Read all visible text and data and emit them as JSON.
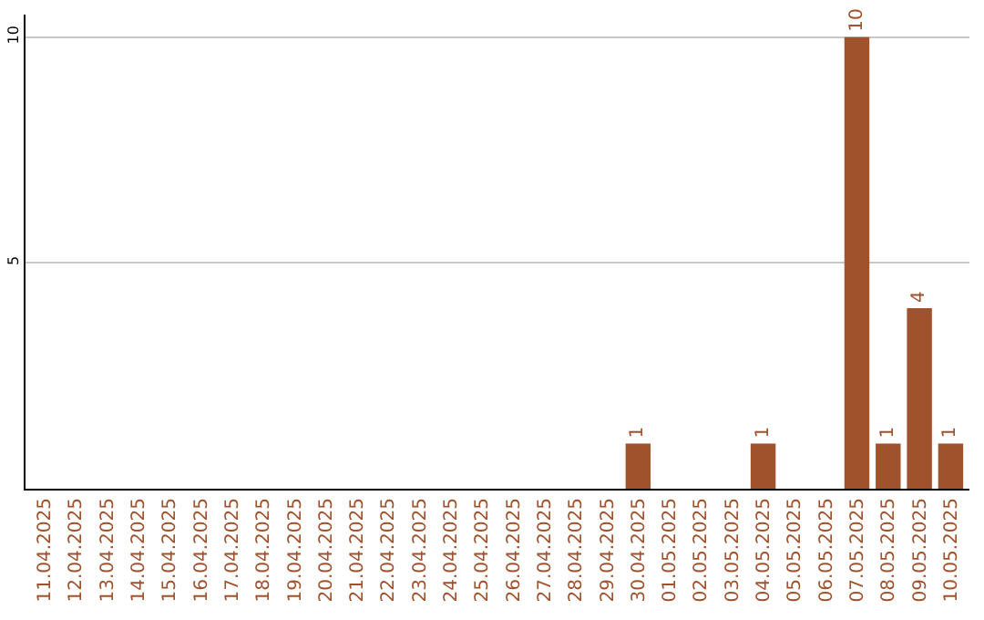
{
  "chart_data": {
    "type": "bar",
    "categories": [
      "11.04.2025",
      "12.04.2025",
      "13.04.2025",
      "14.04.2025",
      "15.04.2025",
      "16.04.2025",
      "17.04.2025",
      "18.04.2025",
      "19.04.2025",
      "20.04.2025",
      "21.04.2025",
      "22.04.2025",
      "23.04.2025",
      "24.04.2025",
      "25.04.2025",
      "26.04.2025",
      "27.04.2025",
      "28.04.2025",
      "29.04.2025",
      "30.04.2025",
      "01.05.2025",
      "02.05.2025",
      "03.05.2025",
      "04.05.2025",
      "05.05.2025",
      "06.05.2025",
      "07.05.2025",
      "08.05.2025",
      "09.05.2025",
      "10.05.2025"
    ],
    "values": [
      0,
      0,
      0,
      0,
      0,
      0,
      0,
      0,
      0,
      0,
      0,
      0,
      0,
      0,
      0,
      0,
      0,
      0,
      0,
      1,
      0,
      0,
      0,
      1,
      0,
      0,
      10,
      1,
      4,
      1
    ],
    "value_labels": [
      null,
      null,
      null,
      null,
      null,
      null,
      null,
      null,
      null,
      null,
      null,
      null,
      null,
      null,
      null,
      null,
      null,
      null,
      null,
      "1",
      null,
      null,
      null,
      "1",
      null,
      null,
      "10",
      "1",
      "4",
      "1"
    ],
    "color": "#a0522d",
    "ylim": [
      0,
      10.5
    ],
    "yticks": [
      5,
      10
    ],
    "grid": "y",
    "legend": false
  }
}
